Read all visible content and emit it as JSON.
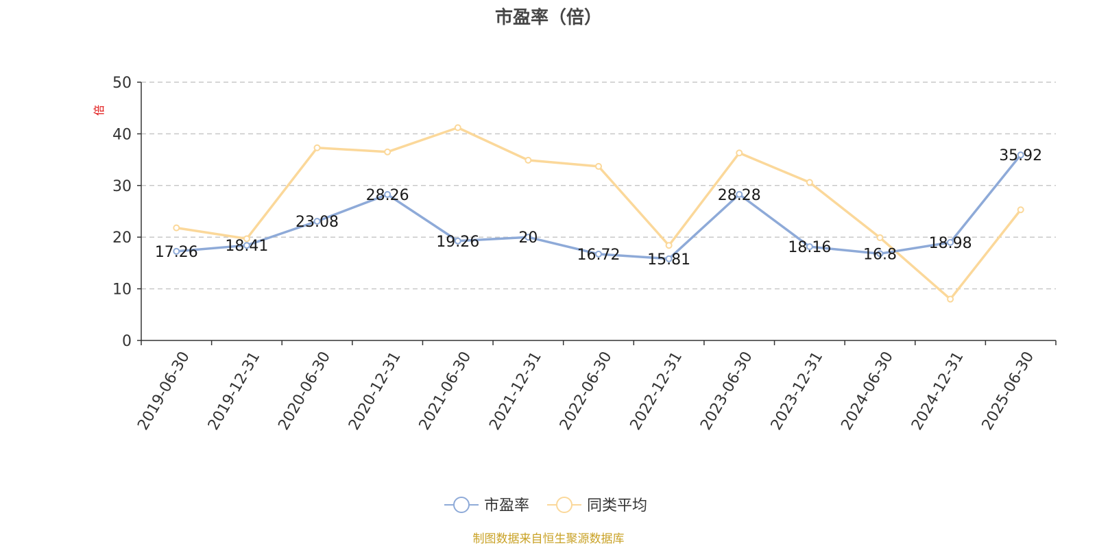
{
  "chart_data": {
    "type": "line",
    "title": "市盈率（倍）",
    "ylabel": "倍",
    "xlabel": "",
    "ylim": [
      0,
      50
    ],
    "yticks": [
      0,
      10,
      20,
      30,
      40,
      50
    ],
    "grid": "horizontal dashed",
    "legend_position": "bottom",
    "categories": [
      "2019-06-30",
      "2019-12-31",
      "2020-06-30",
      "2020-12-31",
      "2021-06-30",
      "2021-12-31",
      "2022-06-30",
      "2022-12-31",
      "2023-06-30",
      "2023-12-31",
      "2024-06-30",
      "2024-12-31",
      "2025-06-30"
    ],
    "series": [
      {
        "name": "市盈率",
        "color": "#8eaad8",
        "show_labels": true,
        "values": [
          17.26,
          18.41,
          23.08,
          28.26,
          19.26,
          20,
          16.72,
          15.81,
          28.28,
          18.16,
          16.8,
          18.98,
          35.92
        ]
      },
      {
        "name": "同类平均",
        "color": "#fbd89a",
        "show_labels": false,
        "values": [
          21.8,
          19.7,
          37.3,
          36.5,
          41.2,
          34.9,
          33.7,
          18.4,
          36.3,
          30.6,
          19.9,
          8.0,
          25.3
        ]
      }
    ]
  },
  "footer": "制图数据来自恒生聚源数据库"
}
